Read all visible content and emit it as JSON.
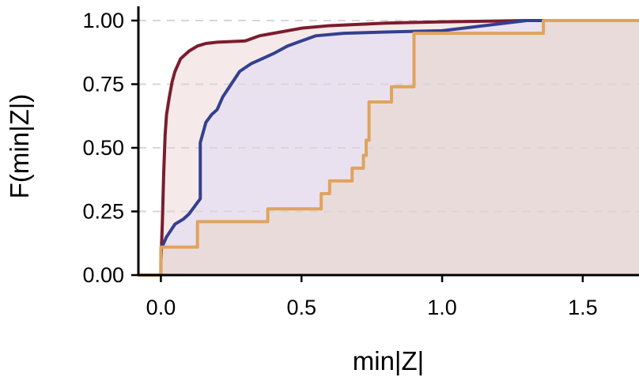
{
  "chart_data": {
    "type": "line",
    "title": "",
    "xlabel": "min|Z|",
    "ylabel": "F(min|Z|)",
    "xlim": [
      -0.08,
      1.7
    ],
    "ylim": [
      0,
      1.0
    ],
    "x_ticks": [
      0.0,
      0.5,
      1.0,
      1.5
    ],
    "x_tick_labels": [
      "0.0",
      "0.5",
      "1.0",
      "1.5"
    ],
    "y_ticks": [
      0.0,
      0.25,
      0.5,
      0.75,
      1.0
    ],
    "y_tick_labels": [
      "0.00",
      "0.25",
      "0.50",
      "0.75",
      "1.00"
    ],
    "grid": "horizontal dashed",
    "legend": "none",
    "series": [
      {
        "color": "#7b1c2f",
        "fill": "#f1e1e1",
        "x": [
          -0.08,
          0.0,
          0.0,
          0.005,
          0.01,
          0.015,
          0.02,
          0.03,
          0.04,
          0.05,
          0.07,
          0.1,
          0.13,
          0.16,
          0.2,
          0.3,
          0.35,
          0.4,
          0.5,
          0.6,
          0.8,
          1.0,
          1.3,
          1.7
        ],
        "y": [
          0.0,
          0.0,
          0.05,
          0.2,
          0.4,
          0.55,
          0.63,
          0.7,
          0.76,
          0.8,
          0.85,
          0.88,
          0.9,
          0.91,
          0.915,
          0.92,
          0.94,
          0.95,
          0.97,
          0.98,
          0.99,
          0.995,
          1.0,
          1.0
        ]
      },
      {
        "color": "#34408f",
        "fill": "#e6def2",
        "x": [
          0.0,
          0.0,
          0.02,
          0.05,
          0.08,
          0.1,
          0.12,
          0.14,
          0.14,
          0.16,
          0.18,
          0.2,
          0.22,
          0.25,
          0.28,
          0.32,
          0.36,
          0.4,
          0.45,
          0.5,
          0.55,
          0.65,
          0.8,
          1.0,
          1.3,
          1.7
        ],
        "y": [
          0.0,
          0.1,
          0.15,
          0.2,
          0.22,
          0.24,
          0.27,
          0.3,
          0.52,
          0.6,
          0.63,
          0.65,
          0.7,
          0.75,
          0.8,
          0.83,
          0.85,
          0.87,
          0.9,
          0.92,
          0.94,
          0.95,
          0.955,
          0.96,
          1.0,
          1.0
        ]
      },
      {
        "color": "#e0a35e",
        "fill": "#e8d8d3",
        "x": [
          -0.08,
          0.0,
          0.0,
          0.13,
          0.13,
          0.38,
          0.38,
          0.57,
          0.57,
          0.6,
          0.6,
          0.68,
          0.68,
          0.72,
          0.72,
          0.73,
          0.73,
          0.74,
          0.74,
          0.82,
          0.82,
          0.9,
          0.9,
          1.36,
          1.36,
          1.7
        ],
        "y": [
          0.0,
          0.0,
          0.11,
          0.11,
          0.21,
          0.21,
          0.26,
          0.26,
          0.32,
          0.32,
          0.37,
          0.37,
          0.42,
          0.42,
          0.47,
          0.47,
          0.53,
          0.53,
          0.68,
          0.68,
          0.74,
          0.74,
          0.95,
          0.95,
          1.0,
          1.0
        ]
      }
    ]
  }
}
